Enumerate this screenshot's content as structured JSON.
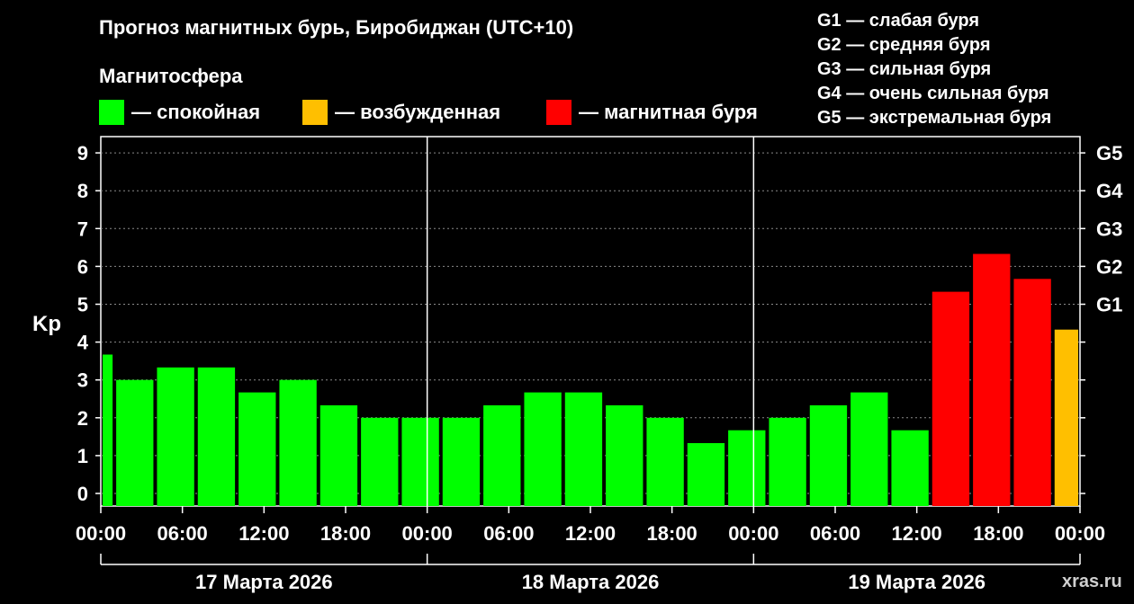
{
  "title": "Прогноз магнитных бурь, Биробиджан (UTC+10)",
  "legend_heading": "Магнитосфера",
  "legend": [
    {
      "label": "— спокойная",
      "color": "#00ff00"
    },
    {
      "label": "— возбужденная",
      "color": "#ffbf00"
    },
    {
      "label": "— магнитная буря",
      "color": "#ff0000"
    }
  ],
  "g_scale_list": [
    "G1 — слабая буря",
    "G2 — средняя буря",
    "G3 — сильная буря",
    "G4 — очень сильная буря",
    "G5 — экстремальная буря"
  ],
  "credit": "xras.ru",
  "colors": {
    "quiet": "#00ff00",
    "active": "#ffbf00",
    "storm": "#ff0000"
  },
  "chart_data": {
    "type": "bar",
    "ylabel": "Kp",
    "ylim": [
      0,
      9
    ],
    "yticks": [
      "0",
      "1",
      "2",
      "3",
      "4",
      "5",
      "6",
      "7",
      "8",
      "9"
    ],
    "right_ticks": [
      {
        "value": 5,
        "label": "G1"
      },
      {
        "value": 6,
        "label": "G2"
      },
      {
        "value": 7,
        "label": "G3"
      },
      {
        "value": 8,
        "label": "G4"
      },
      {
        "value": 9,
        "label": "G5"
      }
    ],
    "xticks": [
      "00:00",
      "06:00",
      "12:00",
      "18:00",
      "00:00",
      "06:00",
      "12:00",
      "18:00",
      "00:00",
      "06:00",
      "12:00",
      "18:00",
      "00:00"
    ],
    "days": [
      "17 Марта 2026",
      "18 Марта 2026",
      "19 Марта 2026"
    ],
    "grid": true,
    "series": [
      {
        "values": [
          {
            "start_hours": 0,
            "kp": 3.67,
            "level": "quiet"
          },
          {
            "start_hours": 1,
            "kp": 3.0,
            "level": "quiet"
          },
          {
            "start_hours": 4,
            "kp": 3.33,
            "level": "quiet"
          },
          {
            "start_hours": 7,
            "kp": 3.33,
            "level": "quiet"
          },
          {
            "start_hours": 10,
            "kp": 2.67,
            "level": "quiet"
          },
          {
            "start_hours": 13,
            "kp": 3.0,
            "level": "quiet"
          },
          {
            "start_hours": 16,
            "kp": 2.33,
            "level": "quiet"
          },
          {
            "start_hours": 19,
            "kp": 2.0,
            "level": "quiet"
          },
          {
            "start_hours": 22,
            "kp": 2.0,
            "level": "quiet"
          },
          {
            "start_hours": 25,
            "kp": 2.0,
            "level": "quiet"
          },
          {
            "start_hours": 28,
            "kp": 2.33,
            "level": "quiet"
          },
          {
            "start_hours": 31,
            "kp": 2.67,
            "level": "quiet"
          },
          {
            "start_hours": 34,
            "kp": 2.67,
            "level": "quiet"
          },
          {
            "start_hours": 37,
            "kp": 2.33,
            "level": "quiet"
          },
          {
            "start_hours": 40,
            "kp": 2.0,
            "level": "quiet"
          },
          {
            "start_hours": 43,
            "kp": 1.33,
            "level": "quiet"
          },
          {
            "start_hours": 46,
            "kp": 1.67,
            "level": "quiet"
          },
          {
            "start_hours": 49,
            "kp": 2.0,
            "level": "quiet"
          },
          {
            "start_hours": 52,
            "kp": 2.33,
            "level": "quiet"
          },
          {
            "start_hours": 55,
            "kp": 2.67,
            "level": "quiet"
          },
          {
            "start_hours": 58,
            "kp": 1.67,
            "level": "quiet"
          },
          {
            "start_hours": 61,
            "kp": 5.33,
            "level": "storm"
          },
          {
            "start_hours": 64,
            "kp": 6.33,
            "level": "storm"
          },
          {
            "start_hours": 67,
            "kp": 5.67,
            "level": "storm"
          },
          {
            "start_hours": 70,
            "kp": 4.33,
            "level": "active"
          }
        ]
      }
    ]
  }
}
